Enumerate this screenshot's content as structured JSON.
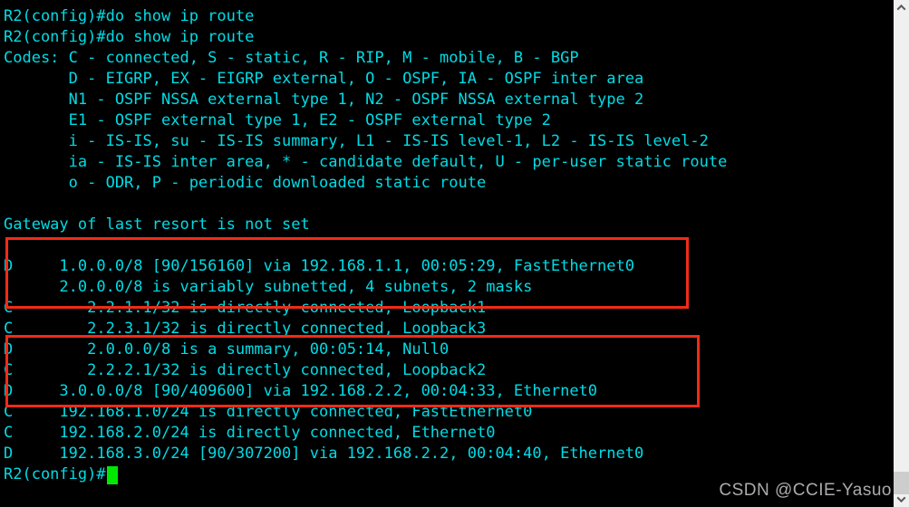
{
  "terminal": {
    "title": "R2 router console - show ip route output",
    "colors": {
      "background": "#000000",
      "foreground": "#00dce6",
      "cursor": "#00e800",
      "highlight_border": "#f02b18"
    },
    "lines": [
      "R2(config)#do show ip route",
      "R2(config)#do show ip route",
      "Codes: C - connected, S - static, R - RIP, M - mobile, B - BGP",
      "       D - EIGRP, EX - EIGRP external, O - OSPF, IA - OSPF inter area",
      "       N1 - OSPF NSSA external type 1, N2 - OSPF NSSA external type 2",
      "       E1 - OSPF external type 1, E2 - OSPF external type 2",
      "       i - IS-IS, su - IS-IS summary, L1 - IS-IS level-1, L2 - IS-IS level-2",
      "       ia - IS-IS inter area, * - candidate default, U - per-user static route",
      "       o - ODR, P - periodic downloaded static route",
      "",
      "Gateway of last resort is not set",
      "",
      "D     1.0.0.0/8 [90/156160] via 192.168.1.1, 00:05:29, FastEthernet0",
      "      2.0.0.0/8 is variably subnetted, 4 subnets, 2 masks",
      "C        2.2.1.1/32 is directly connected, Loopback1",
      "C        2.2.3.1/32 is directly connected, Loopback3",
      "D        2.0.0.0/8 is a summary, 00:05:14, Null0",
      "C        2.2.2.1/32 is directly connected, Loopback2",
      "D     3.0.0.0/8 [90/409600] via 192.168.2.2, 00:04:33, Ethernet0",
      "C     192.168.1.0/24 is directly connected, FastEthernet0",
      "C     192.168.2.0/24 is directly connected, Ethernet0",
      "D     192.168.3.0/24 [90/307200] via 192.168.2.2, 00:04:40, Ethernet0"
    ],
    "prompt": "R2(config)#"
  },
  "annotations": {
    "boxes": [
      {
        "id": 1,
        "color": "#f02b18",
        "covers": [
          "D     1.0.0.0/8 [90/156160] via 192.168.1.1, 00:05:29, FastEthernet0",
          "      2.0.0.0/8 is variably subnetted, 4 subnets, 2 masks"
        ]
      },
      {
        "id": 2,
        "color": "#f02b18",
        "covers": [
          "D        2.0.0.0/8 is a summary, 00:05:14, Null0",
          "C        2.2.2.1/32 is directly connected, Loopback2",
          "D     3.0.0.0/8 [90/409600] via 192.168.2.2, 00:04:33, Ethernet0"
        ]
      }
    ]
  },
  "watermark": {
    "text": "CSDN @CCIE-Yasuo",
    "color": "#ababab"
  },
  "scrollbar": {
    "track_color": "#f0f0f0",
    "thumb_color": "#cdcdcd",
    "up_icon": "chevron-up-icon",
    "down_icon": "chevron-down-icon"
  }
}
